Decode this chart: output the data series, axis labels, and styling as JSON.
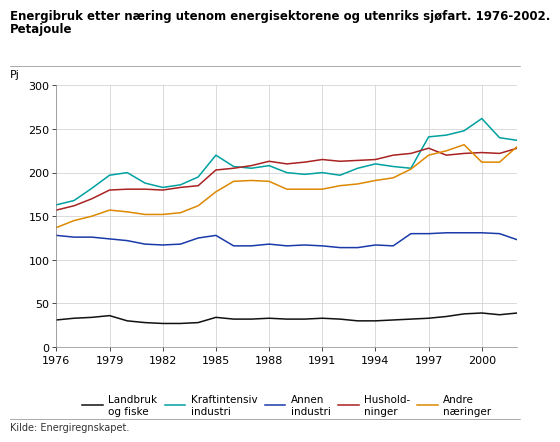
{
  "title_line1": "Energibruk etter næring utenom energisektorene og utenriks sjøfart. 1976-2002.",
  "title_line2": "Petajoule",
  "ylabel": "Pj",
  "source": "Kilde: Energiregnskapet.",
  "years": [
    1976,
    1977,
    1978,
    1979,
    1980,
    1981,
    1982,
    1983,
    1984,
    1985,
    1986,
    1987,
    1988,
    1989,
    1990,
    1991,
    1992,
    1993,
    1994,
    1995,
    1996,
    1997,
    1998,
    1999,
    2000,
    2001,
    2002
  ],
  "series": {
    "Landbruk\nog fiske": {
      "color": "#111111",
      "values": [
        31,
        33,
        34,
        36,
        30,
        28,
        27,
        27,
        28,
        34,
        32,
        32,
        33,
        32,
        32,
        33,
        32,
        30,
        30,
        31,
        32,
        33,
        35,
        38,
        39,
        37,
        39
      ]
    },
    "Kraftintensiv\nindustri": {
      "color": "#00a0a0",
      "values": [
        163,
        168,
        182,
        197,
        200,
        188,
        183,
        186,
        195,
        220,
        207,
        205,
        208,
        200,
        198,
        200,
        197,
        205,
        210,
        207,
        205,
        241,
        243,
        248,
        262,
        240,
        237
      ]
    },
    "Annen\nindustri": {
      "color": "#1a3aaa",
      "values": [
        128,
        126,
        126,
        124,
        122,
        118,
        117,
        118,
        125,
        128,
        116,
        116,
        118,
        116,
        117,
        116,
        114,
        114,
        117,
        116,
        130,
        130,
        131,
        131,
        131,
        130,
        123
      ]
    },
    "Hushold-\nninger": {
      "color": "#aa2222",
      "values": [
        157,
        162,
        170,
        180,
        181,
        181,
        180,
        183,
        185,
        203,
        205,
        208,
        213,
        210,
        212,
        215,
        213,
        214,
        215,
        220,
        222,
        228,
        220,
        222,
        223,
        222,
        228
      ]
    },
    "Andre\nnæringer": {
      "color": "#dd8800",
      "values": [
        137,
        145,
        150,
        157,
        155,
        152,
        152,
        154,
        162,
        178,
        190,
        191,
        190,
        181,
        181,
        181,
        185,
        187,
        191,
        194,
        204,
        220,
        225,
        232,
        212,
        212,
        230
      ]
    }
  },
  "ylim": [
    0,
    300
  ],
  "yticks": [
    0,
    50,
    100,
    150,
    200,
    250,
    300
  ],
  "xticks": [
    1976,
    1979,
    1982,
    1985,
    1988,
    1991,
    1994,
    1997,
    2000
  ],
  "xlim": [
    1976,
    2002
  ],
  "background_color": "#ffffff",
  "grid_color": "#cccccc",
  "title_fontsize": 8.5,
  "tick_fontsize": 8,
  "legend_fontsize": 7.5,
  "source_fontsize": 7
}
